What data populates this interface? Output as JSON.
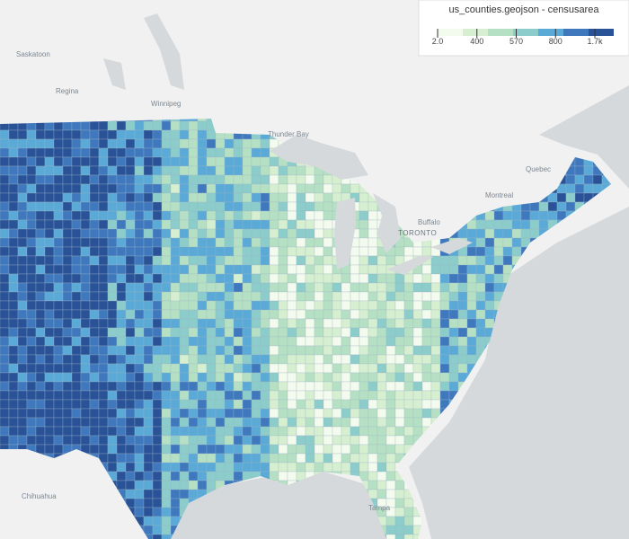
{
  "legend": {
    "title": "us_counties.geojson - censusarea",
    "ticks": [
      "2.0",
      "400",
      "570",
      "800",
      "1.7k"
    ],
    "colors": [
      "#f3faee",
      "#d6efd0",
      "#b5e0c4",
      "#8ccccb",
      "#5aa9d6",
      "#3f78bd",
      "#2a5297"
    ]
  },
  "places": [
    "Saskatoon",
    "Regina",
    "Winnipeg",
    "Thunder Bay",
    "Quebec",
    "Montreal",
    "TORONTO",
    "Buffalo",
    "Chihuahua",
    "Tampa"
  ]
}
